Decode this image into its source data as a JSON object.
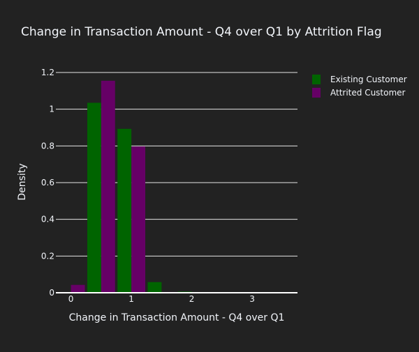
{
  "chart_data": {
    "type": "bar",
    "title": "Change in Transaction Amount - Q4 over Q1 by Attrition Flag",
    "xlabel": "Change in Transaction Amount - Q4 over Q1",
    "ylabel": "Density",
    "xlim": [
      -0.25,
      3.75
    ],
    "ylim": [
      0,
      1.2
    ],
    "x_ticks": [
      0,
      1,
      2,
      3
    ],
    "y_ticks": [
      0,
      0.2,
      0.4,
      0.6,
      0.8,
      1,
      1.2
    ],
    "bin_width": 0.5,
    "bin_starts": [
      -0.25,
      0.25,
      0.75,
      1.25,
      1.75,
      2.25,
      2.75,
      3.25
    ],
    "grid": true,
    "legend_position": "top-right",
    "barmode": "group",
    "series": [
      {
        "name": "Existing Customer",
        "color": "#006400",
        "values": [
          0.0,
          1.035,
          0.893,
          0.058,
          0.006,
          0.003,
          0.001,
          0.0005
        ]
      },
      {
        "name": "Attrited Customer",
        "color": "#660066",
        "values": [
          0.043,
          1.155,
          0.797,
          0.004,
          0.0,
          0.0,
          0.0,
          0.0
        ]
      }
    ]
  }
}
